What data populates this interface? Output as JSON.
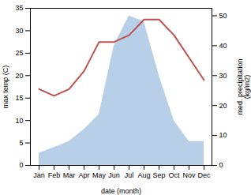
{
  "chart_data": {
    "type": "line",
    "categories": [
      "Jan",
      "Feb",
      "Mar",
      "Apr",
      "May",
      "Jun",
      "Jul",
      "Aug",
      "Sep",
      "Oct",
      "Nov",
      "Dec"
    ],
    "xlabel": "date (month)",
    "ylabel": "max temp (C)",
    "y2label": "med. precipitation\n(kg/m2)",
    "ylim": [
      0,
      35
    ],
    "yticks": [
      0,
      5,
      10,
      15,
      20,
      25,
      30,
      35
    ],
    "y2lim": [
      0,
      52.5
    ],
    "y2ticks": [
      0,
      10,
      20,
      30,
      40,
      50
    ],
    "grid": false,
    "series": [
      {
        "type": "area",
        "axis": "y2",
        "color": "#b8cfe8",
        "values": [
          4,
          6,
          8,
          12,
          17,
          40,
          50,
          48,
          30,
          15,
          8,
          8
        ]
      },
      {
        "type": "line",
        "color": "#c0504d",
        "values": [
          17,
          15.5,
          17,
          21,
          27.5,
          27.5,
          29,
          32.5,
          32.5,
          29,
          24,
          19
        ]
      }
    ]
  }
}
